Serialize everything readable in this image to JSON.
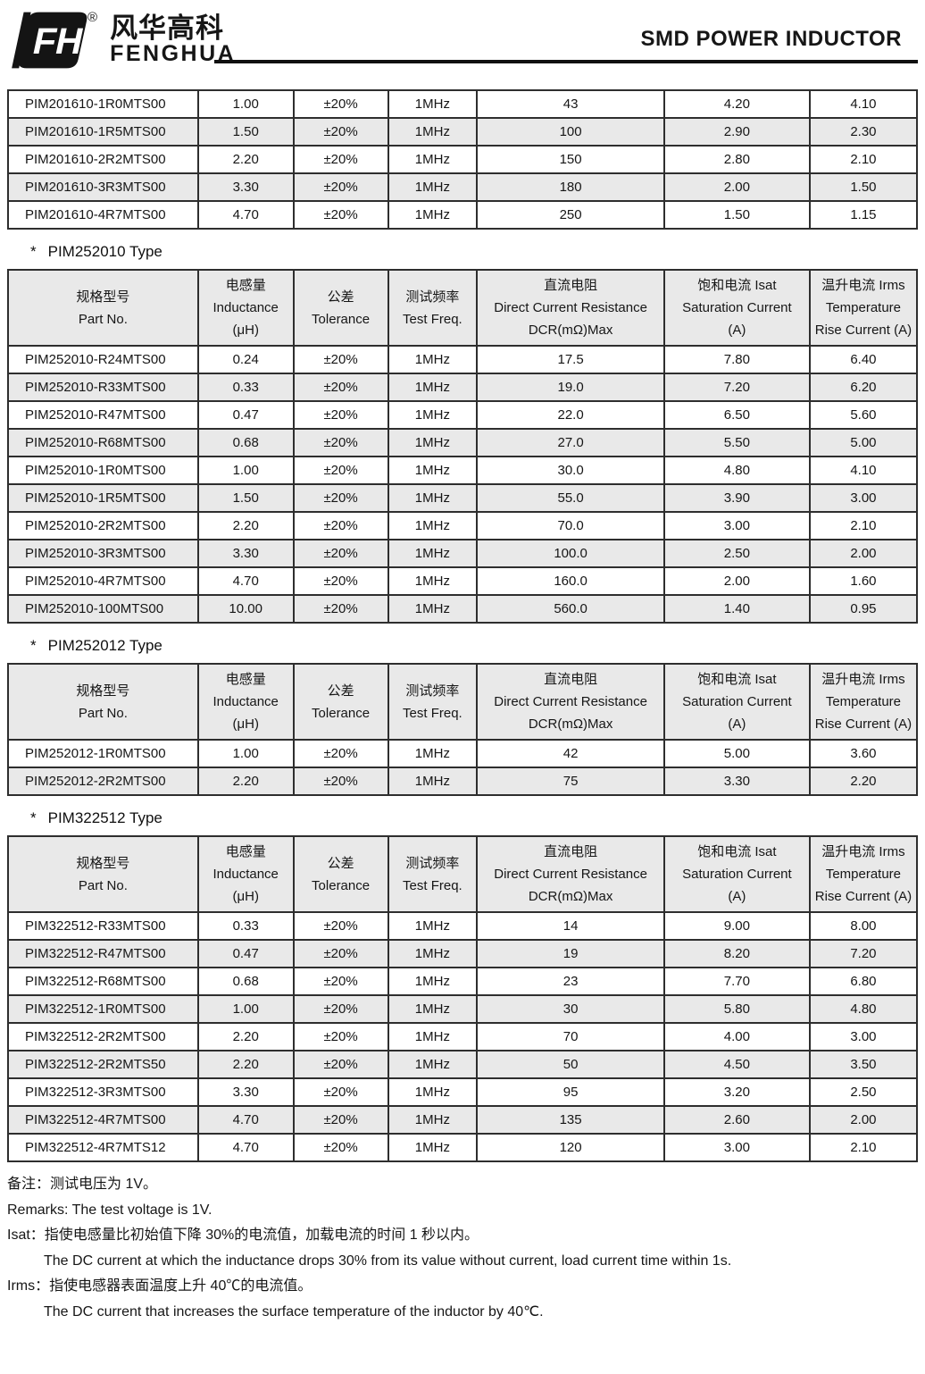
{
  "header": {
    "brand_cn": "风华高科",
    "brand_en": "FENGHUA",
    "registered_mark": "®",
    "logo_monogram": "FH",
    "doc_title": "SMD POWER INDUCTOR"
  },
  "columns": [
    {
      "cn": "规格型号",
      "en": "Part No.",
      "unit": ""
    },
    {
      "cn": "电感量",
      "en": "Inductance",
      "unit": "(μH)"
    },
    {
      "cn": "公差",
      "en": "Tolerance",
      "unit": ""
    },
    {
      "cn": "测试频率",
      "en": "Test Freq.",
      "unit": ""
    },
    {
      "cn": "直流电阻",
      "en": "Direct Current Resistance",
      "unit": "DCR(mΩ)Max"
    },
    {
      "cn": "饱和电流 Isat",
      "en": "Saturation Current",
      "unit": "(A)"
    },
    {
      "cn": "温升电流 Irms",
      "en": "Temperature",
      "unit": "Rise Current (A)"
    }
  ],
  "sections": [
    {
      "id": "pim201610",
      "star": "",
      "title": "",
      "has_header": false,
      "rows": [
        [
          "PIM201610-1R0MTS00",
          "1.00",
          "±20%",
          "1MHz",
          "43",
          "4.20",
          "4.10"
        ],
        [
          "PIM201610-1R5MTS00",
          "1.50",
          "±20%",
          "1MHz",
          "100",
          "2.90",
          "2.30"
        ],
        [
          "PIM201610-2R2MTS00",
          "2.20",
          "±20%",
          "1MHz",
          "150",
          "2.80",
          "2.10"
        ],
        [
          "PIM201610-3R3MTS00",
          "3.30",
          "±20%",
          "1MHz",
          "180",
          "2.00",
          "1.50"
        ],
        [
          "PIM201610-4R7MTS00",
          "4.70",
          "±20%",
          "1MHz",
          "250",
          "1.50",
          "1.15"
        ]
      ]
    },
    {
      "id": "pim252010",
      "star": "*",
      "title": "PIM252010 Type",
      "has_header": true,
      "rows": [
        [
          "PIM252010-R24MTS00",
          "0.24",
          "±20%",
          "1MHz",
          "17.5",
          "7.80",
          "6.40"
        ],
        [
          "PIM252010-R33MTS00",
          "0.33",
          "±20%",
          "1MHz",
          "19.0",
          "7.20",
          "6.20"
        ],
        [
          "PIM252010-R47MTS00",
          "0.47",
          "±20%",
          "1MHz",
          "22.0",
          "6.50",
          "5.60"
        ],
        [
          "PIM252010-R68MTS00",
          "0.68",
          "±20%",
          "1MHz",
          "27.0",
          "5.50",
          "5.00"
        ],
        [
          "PIM252010-1R0MTS00",
          "1.00",
          "±20%",
          "1MHz",
          "30.0",
          "4.80",
          "4.10"
        ],
        [
          "PIM252010-1R5MTS00",
          "1.50",
          "±20%",
          "1MHz",
          "55.0",
          "3.90",
          "3.00"
        ],
        [
          "PIM252010-2R2MTS00",
          "2.20",
          "±20%",
          "1MHz",
          "70.0",
          "3.00",
          "2.10"
        ],
        [
          "PIM252010-3R3MTS00",
          "3.30",
          "±20%",
          "1MHz",
          "100.0",
          "2.50",
          "2.00"
        ],
        [
          "PIM252010-4R7MTS00",
          "4.70",
          "±20%",
          "1MHz",
          "160.0",
          "2.00",
          "1.60"
        ],
        [
          "PIM252010-100MTS00",
          "10.00",
          "±20%",
          "1MHz",
          "560.0",
          "1.40",
          "0.95"
        ]
      ]
    },
    {
      "id": "pim252012",
      "star": "*",
      "title": "PIM252012 Type",
      "has_header": true,
      "rows": [
        [
          "PIM252012-1R0MTS00",
          "1.00",
          "±20%",
          "1MHz",
          "42",
          "5.00",
          "3.60"
        ],
        [
          "PIM252012-2R2MTS00",
          "2.20",
          "±20%",
          "1MHz",
          "75",
          "3.30",
          "2.20"
        ]
      ]
    },
    {
      "id": "pim322512",
      "star": "*",
      "title": "PIM322512 Type",
      "has_header": true,
      "rows": [
        [
          "PIM322512-R33MTS00",
          "0.33",
          "±20%",
          "1MHz",
          "14",
          "9.00",
          "8.00"
        ],
        [
          "PIM322512-R47MTS00",
          "0.47",
          "±20%",
          "1MHz",
          "19",
          "8.20",
          "7.20"
        ],
        [
          "PIM322512-R68MTS00",
          "0.68",
          "±20%",
          "1MHz",
          "23",
          "7.70",
          "6.80"
        ],
        [
          "PIM322512-1R0MTS00",
          "1.00",
          "±20%",
          "1MHz",
          "30",
          "5.80",
          "4.80"
        ],
        [
          "PIM322512-2R2MTS00",
          "2.20",
          "±20%",
          "1MHz",
          "70",
          "4.00",
          "3.00"
        ],
        [
          "PIM322512-2R2MTS50",
          "2.20",
          "±20%",
          "1MHz",
          "50",
          "4.50",
          "3.50"
        ],
        [
          "PIM322512-3R3MTS00",
          "3.30",
          "±20%",
          "1MHz",
          "95",
          "3.20",
          "2.50"
        ],
        [
          "PIM322512-4R7MTS00",
          "4.70",
          "±20%",
          "1MHz",
          "135",
          "2.60",
          "2.00"
        ],
        [
          "PIM322512-4R7MTS12",
          "4.70",
          "±20%",
          "1MHz",
          "120",
          "3.00",
          "2.10"
        ]
      ]
    }
  ],
  "footnotes": [
    {
      "text": "备注：测试电压为 1V。",
      "indent": false
    },
    {
      "text": "Remarks: The test voltage is 1V.",
      "indent": false
    },
    {
      "text": "Isat：指使电感量比初始值下降 30%的电流值，加载电流的时间 1 秒以内。",
      "indent": false
    },
    {
      "text": "The DC current at which the inductance drops 30% from its value without current, load current time within 1s.",
      "indent": true
    },
    {
      "text": "Irms：指使电感器表面温度上升 40℃的电流值。",
      "indent": false
    },
    {
      "text": "The DC current that increases the surface temperature of the inductor by 40℃.",
      "indent": true
    }
  ],
  "colors": {
    "row_alt_bg": "#e9e9e9",
    "header_bg": "#e9e9e9",
    "table_border": "#2e2e2e",
    "ink": "#161616"
  }
}
